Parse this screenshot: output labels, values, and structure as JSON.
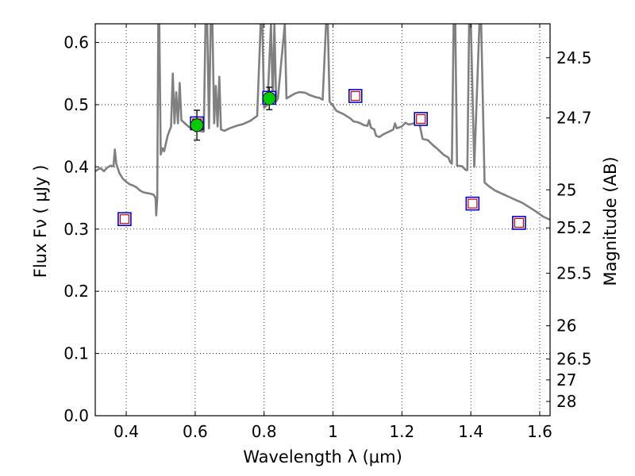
{
  "chart_data": {
    "type": "scatter",
    "xlabel": "Wavelength  λ (μm)",
    "ylabel": "Flux  Fν  ( μJy )",
    "y2label": "Magnitude (AB)",
    "xlim": [
      0.31,
      1.63
    ],
    "ylim": [
      0.0,
      0.63
    ],
    "grid": true,
    "x_ticks": [
      0.4,
      0.6,
      0.8,
      1.0,
      1.2,
      1.4,
      1.6
    ],
    "x_tick_labels": [
      "0.4",
      "0.6",
      "0.8",
      "1",
      "1.2",
      "1.4",
      "1.6"
    ],
    "y_ticks": [
      0.0,
      0.1,
      0.2,
      0.3,
      0.4,
      0.5,
      0.6
    ],
    "y_tick_labels": [
      "0.0",
      "0.1",
      "0.2",
      "0.3",
      "0.4",
      "0.5",
      "0.6"
    ],
    "y2_ticks": [
      {
        "mag": 24.5,
        "label": "24.5"
      },
      {
        "mag": 24.7,
        "label": "24.7"
      },
      {
        "mag": 25.0,
        "label": "25"
      },
      {
        "mag": 25.2,
        "label": "25.2"
      },
      {
        "mag": 25.5,
        "label": "25.5"
      },
      {
        "mag": 26.0,
        "label": "26"
      },
      {
        "mag": 26.5,
        "label": "26.5"
      },
      {
        "mag": 27.0,
        "label": "27"
      },
      {
        "mag": 28.0,
        "label": "28"
      }
    ],
    "colors": {
      "template": "#808080",
      "model_fill": "#ffffff",
      "model_edge_outer": "#0000cc",
      "model_edge_inner": "#cc0000",
      "observed": "#00cc00",
      "errorbar": "#000000"
    },
    "series": [
      {
        "kind": "line",
        "points": [
          [
            0.31,
            0.393
          ],
          [
            0.325,
            0.398
          ],
          [
            0.335,
            0.393
          ],
          [
            0.345,
            0.399
          ],
          [
            0.355,
            0.402
          ],
          [
            0.363,
            0.401
          ],
          [
            0.367,
            0.428
          ],
          [
            0.371,
            0.405
          ],
          [
            0.38,
            0.39
          ],
          [
            0.39,
            0.381
          ],
          [
            0.4,
            0.376
          ],
          [
            0.41,
            0.372
          ],
          [
            0.42,
            0.37
          ],
          [
            0.43,
            0.367
          ],
          [
            0.44,
            0.362
          ],
          [
            0.45,
            0.359
          ],
          [
            0.46,
            0.358
          ],
          [
            0.47,
            0.357
          ],
          [
            0.48,
            0.355
          ],
          [
            0.485,
            0.35
          ],
          [
            0.487,
            0.322
          ],
          [
            0.49,
            0.35
          ],
          [
            0.493,
            0.63
          ],
          [
            0.496,
            0.63
          ],
          [
            0.5,
            0.42
          ],
          [
            0.505,
            0.43
          ],
          [
            0.51,
            0.425
          ],
          [
            0.52,
            0.45
          ],
          [
            0.53,
            0.465
          ],
          [
            0.535,
            0.55
          ],
          [
            0.54,
            0.47
          ],
          [
            0.545,
            0.52
          ],
          [
            0.55,
            0.47
          ],
          [
            0.555,
            0.535
          ],
          [
            0.56,
            0.475
          ],
          [
            0.57,
            0.47
          ],
          [
            0.58,
            0.465
          ],
          [
            0.59,
            0.462
          ],
          [
            0.6,
            0.46
          ],
          [
            0.61,
            0.458
          ],
          [
            0.62,
            0.457
          ],
          [
            0.625,
            0.457
          ],
          [
            0.63,
            0.63
          ],
          [
            0.635,
            0.63
          ],
          [
            0.64,
            0.462
          ],
          [
            0.645,
            0.63
          ],
          [
            0.65,
            0.63
          ],
          [
            0.655,
            0.47
          ],
          [
            0.66,
            0.53
          ],
          [
            0.665,
            0.465
          ],
          [
            0.67,
            0.545
          ],
          [
            0.675,
            0.46
          ],
          [
            0.685,
            0.458
          ],
          [
            0.7,
            0.462
          ],
          [
            0.72,
            0.466
          ],
          [
            0.74,
            0.469
          ],
          [
            0.76,
            0.474
          ],
          [
            0.78,
            0.482
          ],
          [
            0.79,
            0.63
          ],
          [
            0.795,
            0.63
          ],
          [
            0.8,
            0.495
          ],
          [
            0.81,
            0.5
          ],
          [
            0.82,
            0.63
          ],
          [
            0.825,
            0.505
          ],
          [
            0.83,
            0.63
          ],
          [
            0.835,
            0.505
          ],
          [
            0.84,
            0.51
          ],
          [
            0.86,
            0.63
          ],
          [
            0.865,
            0.51
          ],
          [
            0.88,
            0.515
          ],
          [
            0.89,
            0.518
          ],
          [
            0.9,
            0.52
          ],
          [
            0.91,
            0.52
          ],
          [
            0.92,
            0.519
          ],
          [
            0.93,
            0.516
          ],
          [
            0.95,
            0.512
          ],
          [
            0.96,
            0.511
          ],
          [
            0.97,
            0.508
          ],
          [
            0.98,
            0.63
          ],
          [
            0.985,
            0.63
          ],
          [
            0.99,
            0.505
          ],
          [
            1.0,
            0.498
          ],
          [
            1.01,
            0.49
          ],
          [
            1.03,
            0.485
          ],
          [
            1.05,
            0.478
          ],
          [
            1.06,
            0.473
          ],
          [
            1.07,
            0.472
          ],
          [
            1.08,
            0.47
          ],
          [
            1.09,
            0.467
          ],
          [
            1.1,
            0.466
          ],
          [
            1.105,
            0.475
          ],
          [
            1.11,
            0.463
          ],
          [
            1.12,
            0.46
          ],
          [
            1.125,
            0.45
          ],
          [
            1.135,
            0.448
          ],
          [
            1.145,
            0.452
          ],
          [
            1.16,
            0.456
          ],
          [
            1.175,
            0.46
          ],
          [
            1.18,
            0.47
          ],
          [
            1.185,
            0.462
          ],
          [
            1.2,
            0.465
          ],
          [
            1.21,
            0.471
          ],
          [
            1.22,
            0.468
          ],
          [
            1.235,
            0.47
          ],
          [
            1.25,
            0.472
          ],
          [
            1.26,
            0.445
          ],
          [
            1.275,
            0.443
          ],
          [
            1.29,
            0.435
          ],
          [
            1.305,
            0.428
          ],
          [
            1.32,
            0.42
          ],
          [
            1.335,
            0.415
          ],
          [
            1.34,
            0.408
          ],
          [
            1.345,
            0.405
          ],
          [
            1.35,
            0.63
          ],
          [
            1.355,
            0.63
          ],
          [
            1.36,
            0.402
          ],
          [
            1.375,
            0.401
          ],
          [
            1.385,
            0.395
          ],
          [
            1.39,
            0.395
          ],
          [
            1.395,
            0.63
          ],
          [
            1.4,
            0.63
          ],
          [
            1.41,
            0.4
          ],
          [
            1.425,
            0.63
          ],
          [
            1.43,
            0.63
          ],
          [
            1.44,
            0.375
          ],
          [
            1.45,
            0.37
          ],
          [
            1.47,
            0.362
          ],
          [
            1.49,
            0.357
          ],
          [
            1.51,
            0.352
          ],
          [
            1.53,
            0.347
          ],
          [
            1.55,
            0.342
          ],
          [
            1.57,
            0.335
          ],
          [
            1.59,
            0.328
          ],
          [
            1.61,
            0.32
          ],
          [
            1.63,
            0.315
          ]
        ]
      },
      {
        "kind": "square",
        "points": [
          [
            0.395,
            0.316
          ],
          [
            0.605,
            0.47
          ],
          [
            0.815,
            0.511
          ],
          [
            1.065,
            0.514
          ],
          [
            1.255,
            0.477
          ],
          [
            1.405,
            0.341
          ],
          [
            1.54,
            0.31
          ]
        ]
      },
      {
        "kind": "errorbar",
        "points": [
          {
            "x": 0.605,
            "y": 0.467,
            "err": 0.024
          },
          {
            "x": 0.815,
            "y": 0.51,
            "err": 0.018
          }
        ]
      }
    ]
  }
}
